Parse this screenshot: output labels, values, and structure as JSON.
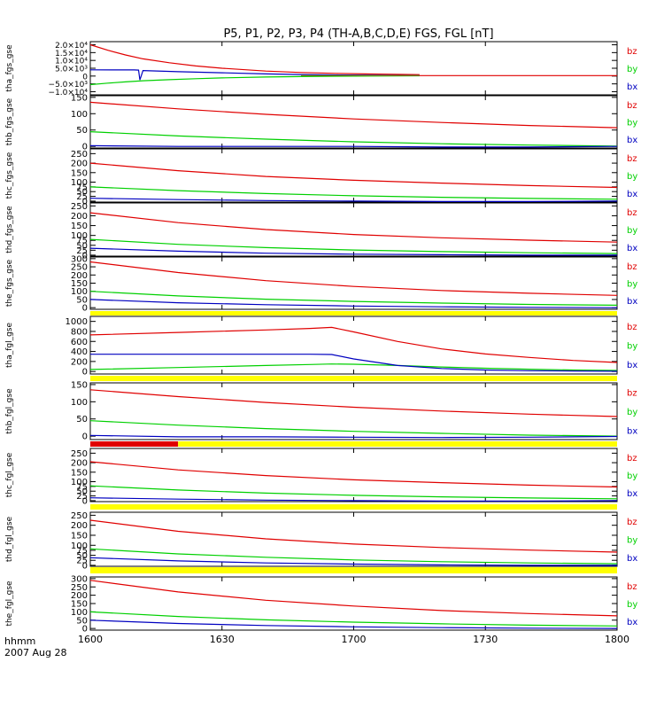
{
  "title": "P5, P1, P2, P3, P4 (TH-A,B,C,D,E) FGS, FGL [nT]",
  "xaxis": {
    "label": "hhmm",
    "date": "2007 Aug 28",
    "range": [
      0,
      120
    ],
    "ticks": [
      0,
      30,
      60,
      90,
      120
    ],
    "tick_labels": [
      "1600",
      "1630",
      "1700",
      "1730",
      "1800"
    ]
  },
  "colors": {
    "bz": "#e00000",
    "by": "#00d000",
    "bx": "#0000c0",
    "olive": "#808000",
    "bar_yellow": "#ffff00",
    "bar_red": "#e00000"
  },
  "chart_data": [
    {
      "type": "line",
      "ylabel": "tha_fgs_gse",
      "ylim": [
        -12000,
        22000
      ],
      "yticks": [
        -10000,
        -5000,
        0,
        5000,
        10000,
        15000,
        20000
      ],
      "ytick_labels": [
        "−1.0×10⁴",
        "−5.0×10³",
        "0",
        "5.0×10³",
        "1.0×10⁴",
        "1.5×10⁴",
        "2.0×10⁴"
      ],
      "legend": [
        "bz",
        "by",
        "bx"
      ],
      "series": [
        {
          "name": "bz",
          "x": [
            0,
            4,
            8,
            12,
            18,
            24,
            30,
            40,
            48,
            56,
            64,
            75
          ],
          "y": [
            20000,
            16500,
            13500,
            11000,
            8500,
            6500,
            5000,
            3200,
            2300,
            1700,
            1300,
            900
          ]
        },
        {
          "name": "by",
          "x": [
            0,
            4,
            8,
            12,
            18,
            24,
            30,
            40,
            48,
            56,
            64,
            75
          ],
          "y": [
            -5500,
            -4500,
            -3700,
            -3000,
            -2300,
            -1700,
            -1200,
            -600,
            -300,
            -100,
            0,
            200
          ]
        },
        {
          "name": "bx",
          "x": [
            0,
            10,
            11,
            11.3,
            12,
            20,
            30,
            40,
            48,
            56,
            64,
            75
          ],
          "y": [
            4000,
            3900,
            3800,
            -2500,
            3500,
            2800,
            2100,
            1400,
            1000,
            700,
            500,
            300
          ]
        },
        {
          "name": "olive",
          "x": [
            48,
            75
          ],
          "y": [
            300,
            300
          ]
        },
        {
          "name": "bz",
          "x": [
            75,
            120
          ],
          "y": [
            300,
            300
          ]
        }
      ]
    },
    {
      "type": "line",
      "ylabel": "thb_fgs_gse",
      "ylim": [
        -5,
        155
      ],
      "yticks": [
        0,
        50,
        100,
        150
      ],
      "ytick_labels": [
        "0",
        "50",
        "100",
        "150"
      ],
      "legend": [
        "bz",
        "by",
        "bx"
      ],
      "series": [
        {
          "name": "bz",
          "x": [
            0,
            20,
            40,
            60,
            80,
            100,
            120
          ],
          "y": [
            135,
            115,
            98,
            84,
            73,
            64,
            57
          ]
        },
        {
          "name": "by",
          "x": [
            0,
            20,
            40,
            60,
            80,
            100,
            120
          ],
          "y": [
            45,
            32,
            22,
            14,
            8,
            4,
            1
          ]
        },
        {
          "name": "bx",
          "x": [
            0,
            20,
            40,
            60,
            80,
            100,
            120
          ],
          "y": [
            2,
            0,
            0,
            0,
            -2,
            -2,
            0
          ]
        }
      ]
    },
    {
      "type": "line",
      "ylabel": "thc_fgs_gse",
      "ylim": [
        -5,
        275
      ],
      "yticks": [
        0,
        25,
        50,
        75,
        100,
        150,
        200,
        250
      ],
      "ytick_labels": [
        "0",
        "25",
        "50",
        "75",
        "100",
        "150",
        "200",
        "250"
      ],
      "legend": [
        "bz",
        "by",
        "bx"
      ],
      "series": [
        {
          "name": "bz",
          "x": [
            0,
            20,
            40,
            60,
            80,
            100,
            120
          ],
          "y": [
            200,
            160,
            130,
            110,
            95,
            82,
            72
          ]
        },
        {
          "name": "by",
          "x": [
            0,
            20,
            40,
            60,
            80,
            100,
            120
          ],
          "y": [
            75,
            55,
            40,
            28,
            20,
            14,
            10
          ]
        },
        {
          "name": "bx",
          "x": [
            0,
            20,
            40,
            60,
            80,
            100,
            120
          ],
          "y": [
            15,
            8,
            3,
            0,
            -2,
            -2,
            0
          ]
        }
      ]
    },
    {
      "type": "line",
      "ylabel": "thd_fgs_gse",
      "ylim": [
        -5,
        265
      ],
      "yticks": [
        0,
        25,
        50,
        75,
        100,
        150,
        200,
        250
      ],
      "ytick_labels": [
        "0",
        "25",
        "50",
        "75",
        "100",
        "150",
        "200",
        "250"
      ],
      "legend": [
        "bz",
        "by",
        "bx"
      ],
      "series": [
        {
          "name": "bz",
          "x": [
            0,
            20,
            40,
            60,
            80,
            100,
            120
          ],
          "y": [
            215,
            165,
            130,
            105,
            88,
            76,
            66
          ]
        },
        {
          "name": "by",
          "x": [
            0,
            20,
            40,
            60,
            80,
            100,
            120
          ],
          "y": [
            80,
            55,
            38,
            26,
            18,
            12,
            8
          ]
        },
        {
          "name": "bx",
          "x": [
            0,
            20,
            40,
            60,
            80,
            100,
            120
          ],
          "y": [
            35,
            20,
            10,
            5,
            2,
            0,
            0
          ]
        }
      ]
    },
    {
      "type": "line",
      "ylabel": "the_fgs_gse",
      "ylim": [
        -10,
        310
      ],
      "yticks": [
        0,
        50,
        100,
        150,
        200,
        250,
        300
      ],
      "ytick_labels": [
        "0",
        "50",
        "100",
        "150",
        "200",
        "250",
        "300"
      ],
      "legend": [
        "bz",
        "by",
        "bx"
      ],
      "series": [
        {
          "name": "bz",
          "x": [
            0,
            20,
            40,
            60,
            80,
            100,
            120
          ],
          "y": [
            280,
            215,
            165,
            130,
            105,
            88,
            75
          ]
        },
        {
          "name": "by",
          "x": [
            0,
            20,
            40,
            60,
            80,
            100,
            120
          ],
          "y": [
            100,
            72,
            52,
            38,
            28,
            20,
            15
          ]
        },
        {
          "name": "bx",
          "x": [
            0,
            20,
            40,
            60,
            80,
            100,
            120
          ],
          "y": [
            50,
            30,
            18,
            10,
            5,
            2,
            0
          ]
        }
      ]
    },
    {
      "type": "line",
      "ylabel": "tha_fgl_gse",
      "ylim": [
        -50,
        1100
      ],
      "yticks": [
        0,
        200,
        400,
        600,
        800,
        1000
      ],
      "ytick_labels": [
        "0",
        "200",
        "400",
        "600",
        "800",
        "1000"
      ],
      "legend": [
        "bz",
        "by",
        "bx"
      ],
      "series": [
        {
          "name": "bz",
          "x": [
            0,
            20,
            40,
            50,
            55,
            60,
            70,
            80,
            90,
            100,
            110,
            120
          ],
          "y": [
            730,
            780,
            830,
            860,
            880,
            790,
            600,
            450,
            350,
            280,
            220,
            180
          ]
        },
        {
          "name": "by",
          "x": [
            0,
            20,
            40,
            50,
            55,
            60,
            70,
            80,
            90,
            100,
            110,
            120
          ],
          "y": [
            40,
            80,
            120,
            140,
            150,
            145,
            120,
            90,
            65,
            45,
            30,
            20
          ]
        },
        {
          "name": "bx",
          "x": [
            0,
            20,
            40,
            50,
            55,
            60,
            70,
            80,
            90,
            100,
            110,
            120
          ],
          "y": [
            345,
            345,
            345,
            345,
            340,
            250,
            120,
            60,
            30,
            15,
            10,
            5
          ]
        }
      ]
    },
    {
      "type": "line",
      "ylabel": "thb_fgl_gse",
      "ylim": [
        -10,
        155
      ],
      "yticks": [
        0,
        50,
        100,
        150
      ],
      "ytick_labels": [
        "0",
        "50",
        "100",
        "150"
      ],
      "legend": [
        "bz",
        "by",
        "bx"
      ],
      "series": [
        {
          "name": "bz",
          "x": [
            0,
            20,
            40,
            60,
            80,
            100,
            120
          ],
          "y": [
            135,
            115,
            98,
            84,
            73,
            64,
            57
          ]
        },
        {
          "name": "by",
          "x": [
            0,
            20,
            40,
            60,
            80,
            100,
            120
          ],
          "y": [
            45,
            32,
            22,
            14,
            8,
            3,
            0
          ]
        },
        {
          "name": "bx",
          "x": [
            0,
            20,
            40,
            60,
            80,
            100,
            120
          ],
          "y": [
            2,
            -2,
            -2,
            -3,
            -4,
            -3,
            -1
          ]
        }
      ]
    },
    {
      "type": "line",
      "ylabel": "thc_fgl_gse",
      "ylim": [
        -5,
        275
      ],
      "yticks": [
        0,
        25,
        50,
        75,
        100,
        150,
        200,
        250
      ],
      "ytick_labels": [
        "0",
        "25",
        "50",
        "75",
        "100",
        "150",
        "200",
        "250"
      ],
      "legend": [
        "bz",
        "by",
        "bx"
      ],
      "series": [
        {
          "name": "bz",
          "x": [
            0,
            20,
            40,
            60,
            80,
            100,
            120
          ],
          "y": [
            205,
            162,
            132,
            110,
            95,
            82,
            72
          ]
        },
        {
          "name": "by",
          "x": [
            0,
            20,
            40,
            60,
            80,
            100,
            120
          ],
          "y": [
            78,
            56,
            40,
            28,
            20,
            14,
            10
          ]
        },
        {
          "name": "bx",
          "x": [
            0,
            20,
            40,
            60,
            80,
            100,
            120
          ],
          "y": [
            15,
            8,
            3,
            0,
            -2,
            -2,
            0
          ]
        }
      ]
    },
    {
      "type": "line",
      "ylabel": "thd_fgl_gse",
      "ylim": [
        -5,
        265
      ],
      "yticks": [
        0,
        25,
        50,
        75,
        100,
        150,
        200,
        250
      ],
      "ytick_labels": [
        "0",
        "25",
        "50",
        "75",
        "100",
        "150",
        "200",
        "250"
      ],
      "legend": [
        "bz",
        "by",
        "bx"
      ],
      "series": [
        {
          "name": "bz",
          "x": [
            0,
            20,
            40,
            60,
            80,
            100,
            120
          ],
          "y": [
            225,
            170,
            132,
            106,
            89,
            76,
            66
          ]
        },
        {
          "name": "by",
          "x": [
            0,
            20,
            40,
            60,
            80,
            100,
            120
          ],
          "y": [
            82,
            57,
            40,
            27,
            18,
            12,
            8
          ]
        },
        {
          "name": "bx",
          "x": [
            0,
            20,
            40,
            60,
            80,
            100,
            120
          ],
          "y": [
            38,
            22,
            12,
            6,
            2,
            0,
            0
          ]
        }
      ]
    },
    {
      "type": "line",
      "ylabel": "the_fgl_gse",
      "ylim": [
        -10,
        310
      ],
      "yticks": [
        0,
        50,
        100,
        150,
        200,
        250,
        300
      ],
      "ytick_labels": [
        "0",
        "50",
        "100",
        "150",
        "200",
        "250",
        "300"
      ],
      "legend": [
        "bz",
        "by",
        "bx"
      ],
      "series": [
        {
          "name": "bz",
          "x": [
            0,
            20,
            40,
            60,
            80,
            100,
            120
          ],
          "y": [
            290,
            220,
            170,
            135,
            108,
            90,
            76
          ]
        },
        {
          "name": "by",
          "x": [
            0,
            20,
            40,
            60,
            80,
            100,
            120
          ],
          "y": [
            100,
            72,
            52,
            38,
            28,
            20,
            15
          ]
        },
        {
          "name": "bx",
          "x": [
            0,
            20,
            40,
            60,
            80,
            100,
            120
          ],
          "y": [
            50,
            30,
            18,
            10,
            5,
            2,
            0
          ]
        }
      ]
    }
  ],
  "status_bars": [
    {
      "after_panel": 4,
      "segments": [
        {
          "color": "bar_yellow",
          "x": [
            0,
            120
          ]
        }
      ]
    },
    {
      "after_panel": 5,
      "segments": [
        {
          "color": "bar_yellow",
          "x": [
            0,
            120
          ]
        }
      ]
    },
    {
      "after_panel": 6,
      "segments": [
        {
          "color": "bar_red",
          "x": [
            0,
            20
          ]
        },
        {
          "color": "bar_yellow",
          "x": [
            20,
            120
          ]
        }
      ]
    },
    {
      "after_panel": 7,
      "segments": [
        {
          "color": "bar_yellow",
          "x": [
            0,
            120
          ]
        }
      ]
    },
    {
      "after_panel": 8,
      "segments": [
        {
          "color": "bar_yellow",
          "x": [
            0,
            120
          ]
        }
      ]
    }
  ]
}
